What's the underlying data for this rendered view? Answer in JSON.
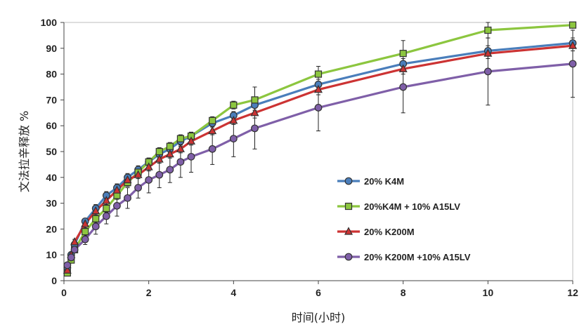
{
  "chart_data": {
    "type": "line",
    "title": "",
    "xlabel": "时间(小时)",
    "ylabel": "文法拉辛释放 %",
    "xlim": [
      0,
      12
    ],
    "ylim": [
      0,
      100
    ],
    "xticks": [
      0,
      2,
      4,
      6,
      8,
      10,
      12
    ],
    "yticks": [
      0,
      10,
      20,
      30,
      40,
      50,
      60,
      70,
      80,
      90,
      100
    ],
    "grid": false,
    "legend_position": "right",
    "x": [
      0.08,
      0.17,
      0.25,
      0.5,
      0.75,
      1,
      1.25,
      1.5,
      1.75,
      2,
      2.25,
      2.5,
      2.75,
      3,
      3.5,
      4,
      4.5,
      6,
      8,
      10,
      12
    ],
    "series": [
      {
        "name": "20% K4M",
        "color": "#4a7ebb",
        "marker": "circle",
        "values": [
          5,
          10,
          14,
          23,
          28,
          33,
          36,
          40,
          43,
          46,
          49,
          51,
          54,
          56,
          61,
          64,
          68,
          76,
          84,
          89,
          92
        ],
        "errors": [
          1,
          1,
          1,
          1,
          1.5,
          1.5,
          1.5,
          1.5,
          1.5,
          1.5,
          1.5,
          1.5,
          1.5,
          1.5,
          1.5,
          1.5,
          2,
          2,
          2,
          2,
          2
        ]
      },
      {
        "name": "20%K4M + 10% A15LV",
        "color": "#8cc63f",
        "marker": "square",
        "values": [
          3,
          8,
          12,
          19,
          24,
          28,
          33,
          38,
          42,
          46,
          50,
          52,
          55,
          56,
          62,
          68,
          70,
          80,
          88,
          97,
          99
        ],
        "errors": [
          1,
          1,
          1,
          1.5,
          1.5,
          1.5,
          1.5,
          1.5,
          1.5,
          1.5,
          1.5,
          1.5,
          1.5,
          1.5,
          1.5,
          1.5,
          5,
          3,
          5,
          3,
          1
        ]
      },
      {
        "name": "20% K200M",
        "color": "#cc3333",
        "marker": "triangle",
        "values": [
          4,
          10,
          15,
          22,
          27,
          31,
          35,
          39,
          41,
          44,
          47,
          49,
          51,
          54,
          58,
          62,
          65,
          74,
          82,
          88,
          91
        ],
        "errors": [
          1,
          1,
          1,
          1.5,
          1.5,
          1.5,
          1.5,
          1.5,
          1.5,
          1.5,
          1.5,
          1.5,
          1.5,
          1.5,
          1.5,
          1.5,
          2,
          2,
          2,
          2,
          2
        ]
      },
      {
        "name": "20% K200M +10% A15LV",
        "color": "#7f5fa8",
        "marker": "circle",
        "values": [
          6,
          9,
          12,
          16,
          21,
          25,
          29,
          32,
          36,
          39,
          41,
          43,
          46,
          48,
          51,
          55,
          59,
          67,
          75,
          81,
          84
        ],
        "errors": [
          1,
          1,
          1,
          2,
          3,
          3,
          4,
          4,
          4,
          5,
          5,
          5,
          6,
          6,
          6,
          7,
          8,
          9,
          10,
          13,
          13
        ]
      }
    ]
  }
}
